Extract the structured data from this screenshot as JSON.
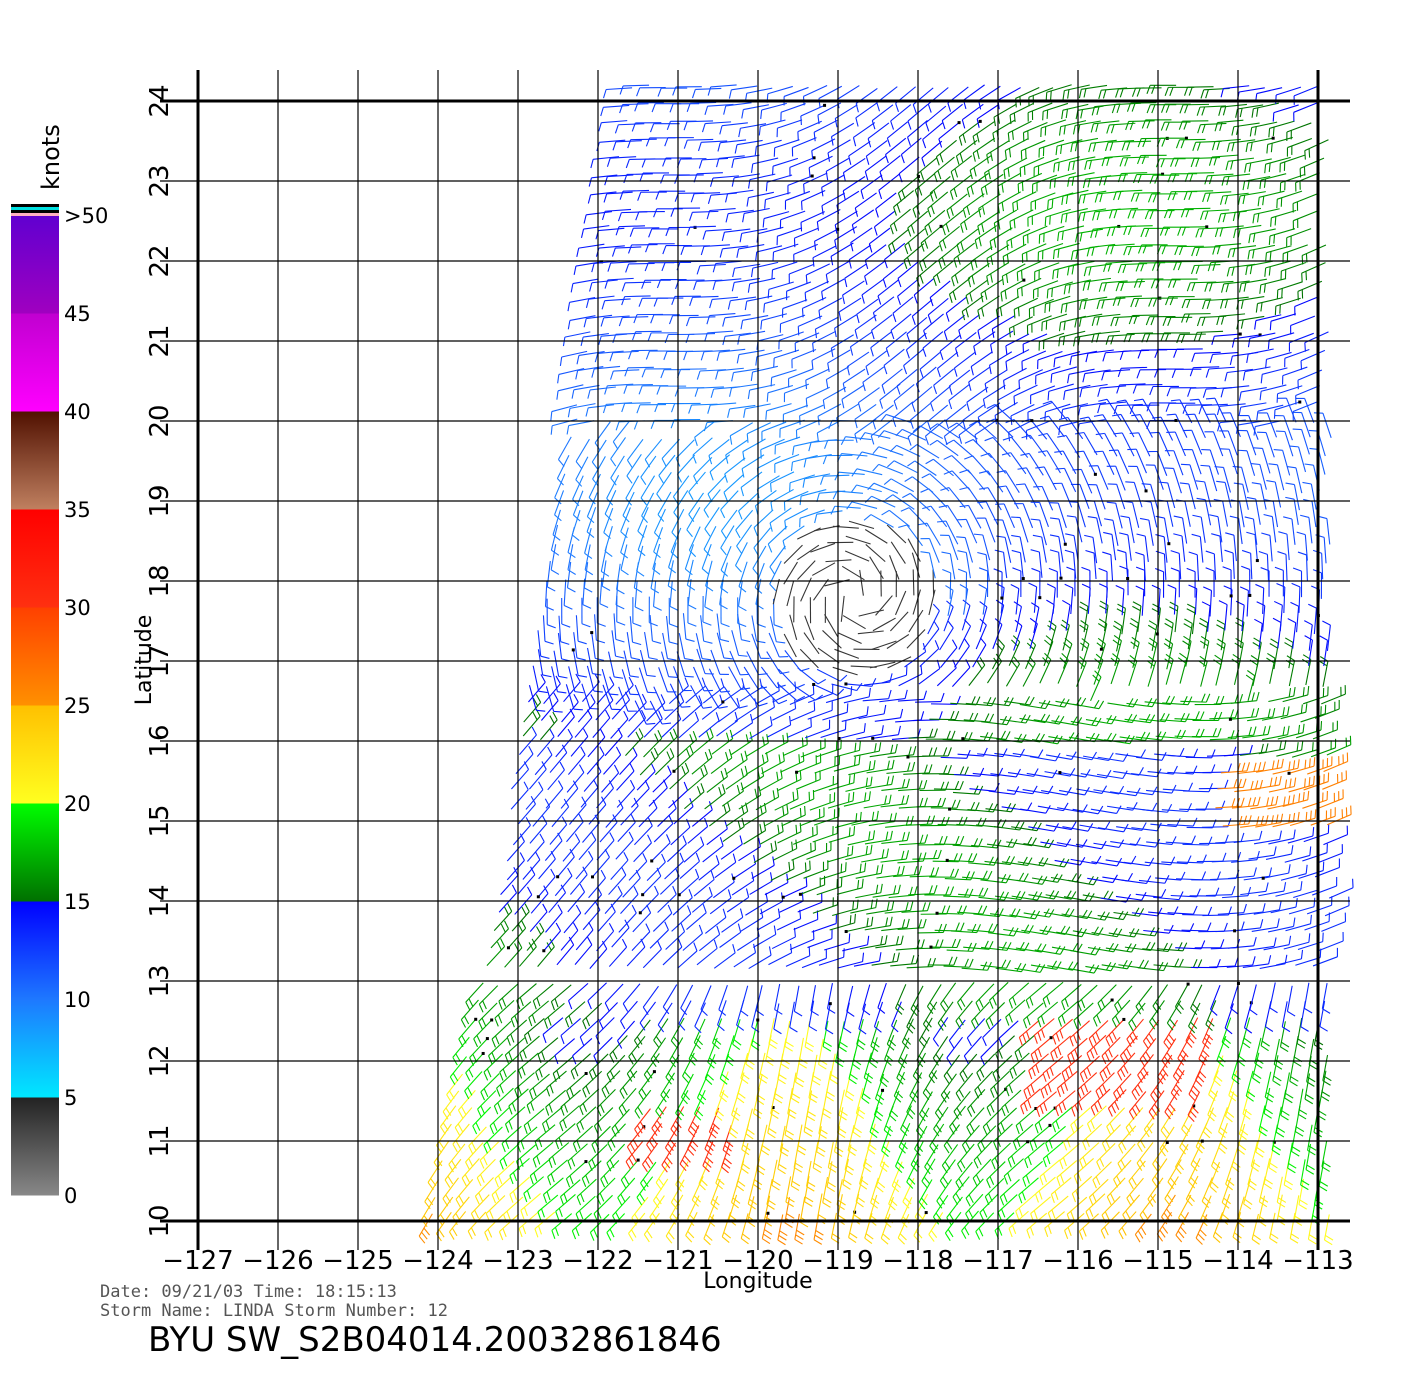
{
  "chart_data": {
    "type": "wind-barb-map",
    "xlabel": "Longitude",
    "ylabel": "Latitude",
    "xlim": [
      -127,
      -113
    ],
    "ylim": [
      10,
      24
    ],
    "x_ticks": [
      "−127",
      "−126",
      "−125",
      "−124",
      "−123",
      "−122",
      "−121",
      "−120",
      "−119",
      "−118",
      "−117",
      "−116",
      "−115",
      "−114",
      "−113"
    ],
    "y_ticks": [
      "10",
      "11",
      "12",
      "13",
      "14",
      "15",
      "16",
      "17",
      "18",
      "19",
      "20",
      "21",
      "22",
      "23",
      "24"
    ],
    "grid": true,
    "colorbar": {
      "title": "knots",
      "labels": [
        "0",
        "5",
        "10",
        "15",
        "20",
        "25",
        "30",
        "35",
        "40",
        "45",
        ">50"
      ],
      "bands": [
        {
          "from": 0,
          "to": 5,
          "colors": [
            "#888888",
            "#222222"
          ]
        },
        {
          "from": 5,
          "to": 10,
          "colors": [
            "#00e8ff",
            "#1e78ff"
          ]
        },
        {
          "from": 10,
          "to": 15,
          "colors": [
            "#1e78ff",
            "#0000ff"
          ]
        },
        {
          "from": 15,
          "to": 20,
          "colors": [
            "#007000",
            "#00ff00"
          ]
        },
        {
          "from": 20,
          "to": 25,
          "colors": [
            "#ffff20",
            "#ffc000"
          ]
        },
        {
          "from": 25,
          "to": 30,
          "colors": [
            "#ff9000",
            "#ff4000"
          ]
        },
        {
          "from": 30,
          "to": 35,
          "colors": [
            "#ff3010",
            "#ff0000"
          ]
        },
        {
          "from": 35,
          "to": 40,
          "colors": [
            "#c08060",
            "#501000"
          ]
        },
        {
          "from": 40,
          "to": 45,
          "colors": [
            "#ff00ff",
            "#c000d0"
          ]
        },
        {
          "from": 45,
          "to": 50,
          "colors": [
            "#a000c0",
            "#6000d0"
          ]
        }
      ],
      "top_strip_colors": [
        "#ffb0c0",
        "#000000",
        "#00e0e0",
        "#000000"
      ]
    }
  },
  "meta": {
    "date_line": "Date: 09/21/03   Time: 18:15:13",
    "storm_line": "Storm  Name: LINDA   Storm  Number: 12",
    "big_title": "BYU  SW_S2B04014.20032861846"
  }
}
